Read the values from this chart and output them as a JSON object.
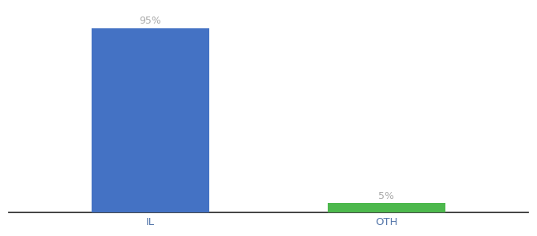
{
  "categories": [
    "IL",
    "OTH"
  ],
  "values": [
    95,
    5
  ],
  "bar_colors": [
    "#4472c4",
    "#4db84d"
  ],
  "label_texts": [
    "95%",
    "5%"
  ],
  "background_color": "#ffffff",
  "ylim": [
    0,
    105
  ],
  "bar_width": 0.5,
  "figsize": [
    6.8,
    3.0
  ],
  "dpi": 100,
  "label_fontsize": 9,
  "tick_fontsize": 9.5,
  "label_color": "#aaaaaa",
  "tick_color": "#5577aa",
  "spine_color": "#222222"
}
